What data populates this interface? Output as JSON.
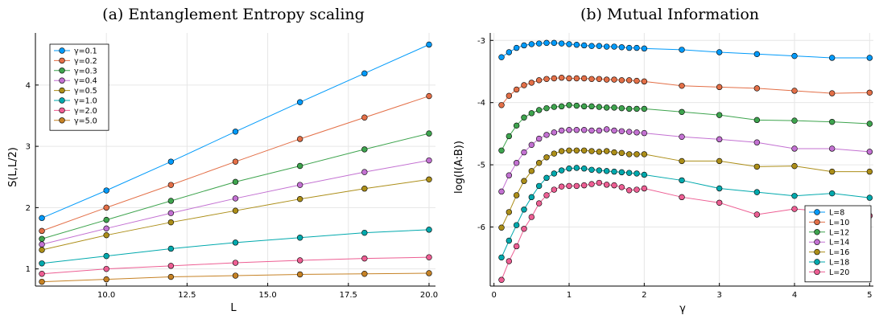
{
  "chart_data": [
    {
      "type": "line",
      "title": "(a) Entanglement Entropy scaling",
      "xlabel": "L",
      "ylabel": "S(L,L/2)",
      "xlim": [
        7.8,
        20.2
      ],
      "ylim": [
        0.72,
        4.85
      ],
      "xticks": [
        10.0,
        12.5,
        15.0,
        17.5,
        20.0
      ],
      "xtick_labels": [
        "10.0",
        "12.5",
        "15.0",
        "17.5",
        "20.0"
      ],
      "yticks": [
        1,
        2,
        3,
        4
      ],
      "ytick_labels": [
        "1",
        "2",
        "3",
        "4"
      ],
      "grid": true,
      "legend_position": "top-left",
      "x": [
        8,
        10,
        12,
        14,
        16,
        18,
        20
      ],
      "series": [
        {
          "name": "γ=0.1",
          "color": "#009AFA",
          "values": [
            1.83,
            2.28,
            2.75,
            3.24,
            3.72,
            4.19,
            4.66
          ]
        },
        {
          "name": "γ=0.2",
          "color": "#E36F47",
          "values": [
            1.62,
            2.0,
            2.37,
            2.75,
            3.12,
            3.47,
            3.82
          ]
        },
        {
          "name": "γ=0.3",
          "color": "#3EA44E",
          "values": [
            1.49,
            1.8,
            2.11,
            2.42,
            2.68,
            2.95,
            3.21
          ]
        },
        {
          "name": "γ=0.4",
          "color": "#C371D2",
          "values": [
            1.4,
            1.66,
            1.91,
            2.15,
            2.37,
            2.58,
            2.77
          ]
        },
        {
          "name": "γ=0.5",
          "color": "#AC8E18",
          "values": [
            1.31,
            1.55,
            1.76,
            1.95,
            2.14,
            2.31,
            2.46
          ]
        },
        {
          "name": "γ=1.0",
          "color": "#00A9AD",
          "values": [
            1.09,
            1.21,
            1.33,
            1.43,
            1.51,
            1.59,
            1.64
          ]
        },
        {
          "name": "γ=2.0",
          "color": "#ED5E93",
          "values": [
            0.92,
            1.0,
            1.05,
            1.1,
            1.14,
            1.17,
            1.19
          ]
        },
        {
          "name": "γ=5.0",
          "color": "#C68225",
          "values": [
            0.79,
            0.83,
            0.87,
            0.89,
            0.91,
            0.92,
            0.93
          ]
        }
      ]
    },
    {
      "type": "line",
      "title": "(b) Mutual Information",
      "xlabel": "γ",
      "ylabel": "log(I(A:B))",
      "xlim": [
        -0.05,
        5.05
      ],
      "ylim": [
        -6.95,
        -2.88
      ],
      "xticks": [
        0,
        1,
        2,
        3,
        4,
        5
      ],
      "xtick_labels": [
        "0",
        "1",
        "2",
        "3",
        "4",
        "5"
      ],
      "yticks": [
        -6,
        -5,
        -4,
        -3
      ],
      "ytick_labels": [
        "-6",
        "-5",
        "-4",
        "-3"
      ],
      "grid": true,
      "legend_position": "bottom-right",
      "x": [
        0.1,
        0.2,
        0.3,
        0.4,
        0.5,
        0.6,
        0.7,
        0.8,
        0.9,
        1.0,
        1.1,
        1.2,
        1.3,
        1.4,
        1.5,
        1.6,
        1.7,
        1.8,
        1.9,
        2.0,
        2.5,
        3.0,
        3.5,
        4.0,
        4.5,
        5.0
      ],
      "series": [
        {
          "name": "L=8",
          "color": "#009AFA",
          "values": [
            -3.27,
            -3.19,
            -3.12,
            -3.08,
            -3.06,
            -3.05,
            -3.04,
            -3.04,
            -3.05,
            -3.06,
            -3.07,
            -3.08,
            -3.09,
            -3.09,
            -3.1,
            -3.1,
            -3.11,
            -3.12,
            -3.12,
            -3.13,
            -3.15,
            -3.19,
            -3.22,
            -3.25,
            -3.28,
            -3.28
          ]
        },
        {
          "name": "L=10",
          "color": "#E36F47",
          "values": [
            -4.04,
            -3.89,
            -3.79,
            -3.72,
            -3.68,
            -3.64,
            -3.62,
            -3.61,
            -3.6,
            -3.61,
            -3.61,
            -3.61,
            -3.62,
            -3.62,
            -3.63,
            -3.63,
            -3.64,
            -3.64,
            -3.65,
            -3.66,
            -3.73,
            -3.75,
            -3.77,
            -3.81,
            -3.85,
            -3.84
          ]
        },
        {
          "name": "L=12",
          "color": "#3EA44E",
          "values": [
            -4.77,
            -4.54,
            -4.37,
            -4.24,
            -4.17,
            -4.12,
            -4.09,
            -4.07,
            -4.06,
            -4.04,
            -4.05,
            -4.06,
            -4.06,
            -4.07,
            -4.08,
            -4.08,
            -4.09,
            -4.1,
            -4.1,
            -4.1,
            -4.15,
            -4.2,
            -4.28,
            -4.29,
            -4.31,
            -4.34
          ]
        },
        {
          "name": "L=14",
          "color": "#C371D2",
          "values": [
            -5.43,
            -5.17,
            -4.97,
            -4.8,
            -4.68,
            -4.58,
            -4.52,
            -4.48,
            -4.45,
            -4.44,
            -4.44,
            -4.44,
            -4.45,
            -4.45,
            -4.43,
            -4.45,
            -4.46,
            -4.47,
            -4.48,
            -4.49,
            -4.55,
            -4.59,
            -4.64,
            -4.74,
            -4.74,
            -4.79
          ]
        },
        {
          "name": "L=16",
          "color": "#AC8E18",
          "values": [
            -6.01,
            -5.76,
            -5.49,
            -5.26,
            -5.1,
            -4.97,
            -4.88,
            -4.82,
            -4.78,
            -4.77,
            -4.77,
            -4.77,
            -4.78,
            -4.79,
            -4.78,
            -4.8,
            -4.81,
            -4.83,
            -4.83,
            -4.83,
            -4.94,
            -4.94,
            -5.03,
            -5.02,
            -5.11,
            -5.11
          ]
        },
        {
          "name": "L=18",
          "color": "#00A9AD",
          "values": [
            -6.49,
            -6.22,
            -5.97,
            -5.72,
            -5.52,
            -5.34,
            -5.21,
            -5.14,
            -5.09,
            -5.06,
            -5.05,
            -5.06,
            -5.08,
            -5.09,
            -5.1,
            -5.11,
            -5.12,
            -5.13,
            -5.14,
            -5.16,
            -5.25,
            -5.38,
            -5.44,
            -5.5,
            -5.46,
            -5.53
          ]
        },
        {
          "name": "L=20",
          "color": "#ED5E93",
          "values": [
            -6.85,
            -6.55,
            -6.31,
            -6.03,
            -5.84,
            -5.62,
            -5.49,
            -5.4,
            -5.35,
            -5.34,
            -5.34,
            -5.33,
            -5.31,
            -5.29,
            -5.32,
            -5.33,
            -5.36,
            -5.41,
            -5.4,
            -5.38,
            -5.52,
            -5.61,
            -5.8,
            -5.71,
            -5.76,
            -5.82
          ]
        }
      ]
    }
  ]
}
